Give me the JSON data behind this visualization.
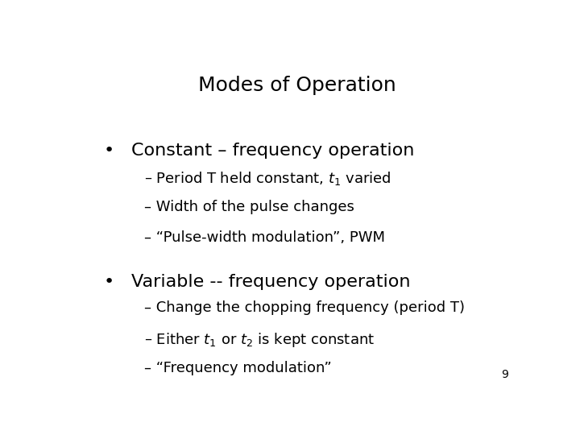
{
  "title": "Modes of Operation",
  "background_color": "#ffffff",
  "text_color": "#000000",
  "title_fontsize": 18,
  "bullet_fontsize": 16,
  "sub_fontsize": 13,
  "page_number": "9",
  "bullet1_text": "Constant – frequency operation",
  "bullet2_text": "Variable -- frequency operation"
}
